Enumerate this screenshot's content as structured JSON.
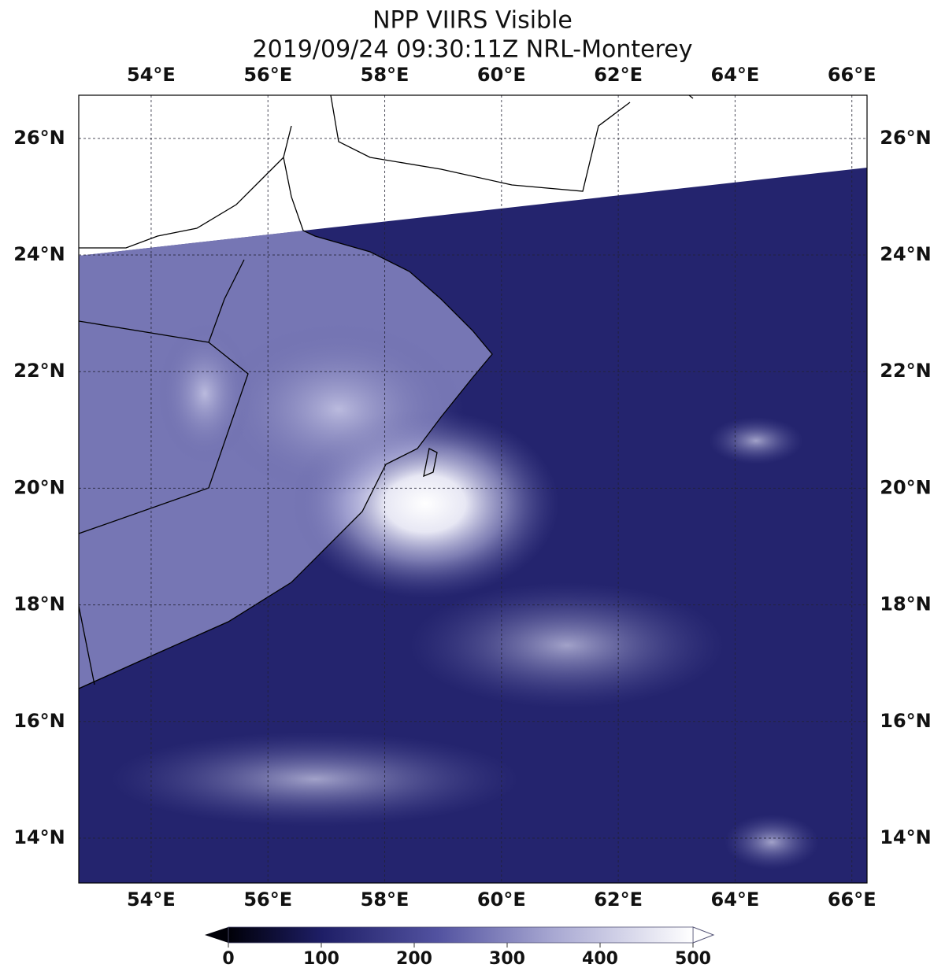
{
  "chart_data": {
    "type": "map",
    "title": "NPP VIIRS Visible",
    "subtitle": "2019/09/24 09:30:11Z NRL-Monterey",
    "xlim": [
      52.76,
      66.26
    ],
    "ylim": [
      13.23,
      26.74
    ],
    "xticks": [
      {
        "value": 54,
        "label": "54°E"
      },
      {
        "value": 56,
        "label": "56°E"
      },
      {
        "value": 58,
        "label": "58°E"
      },
      {
        "value": 60,
        "label": "60°E"
      },
      {
        "value": 62,
        "label": "62°E"
      },
      {
        "value": 64,
        "label": "64°E"
      },
      {
        "value": 66,
        "label": "66°E"
      }
    ],
    "yticks": [
      {
        "value": 14,
        "label": "14°N"
      },
      {
        "value": 16,
        "label": "16°N"
      },
      {
        "value": 18,
        "label": "18°N"
      },
      {
        "value": 20,
        "label": "20°N"
      },
      {
        "value": 22,
        "label": "22°N"
      },
      {
        "value": 24,
        "label": "24°N"
      },
      {
        "value": 26,
        "label": "26°N"
      }
    ],
    "grid": true,
    "colorbar": {
      "lim": [
        0,
        500
      ],
      "ticks": [
        0,
        100,
        200,
        300,
        400,
        500
      ]
    }
  }
}
